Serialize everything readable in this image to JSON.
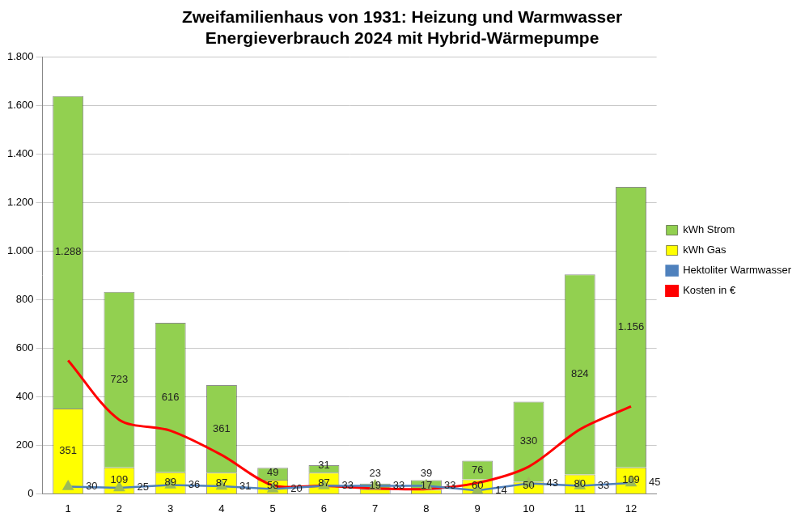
{
  "chart_data": {
    "type": "bar",
    "title": "Zweifamilienhaus von 1931: Heizung und Warmwasser\nEnergieverbrauch 2024 mit Hybrid-Wärmepumpe",
    "categories": [
      "1",
      "2",
      "3",
      "4",
      "5",
      "6",
      "7",
      "8",
      "9",
      "10",
      "11",
      "12"
    ],
    "series": [
      {
        "name": "kWh Gas",
        "type": "bar",
        "color": "#FFFF00",
        "values": [
          351,
          109,
          89,
          87,
          58,
          87,
          19,
          17,
          60,
          50,
          80,
          109
        ],
        "data_labels": true
      },
      {
        "name": "kWh Strom",
        "type": "bar",
        "color": "#92D050",
        "values": [
          1288,
          723,
          616,
          361,
          49,
          31,
          23,
          39,
          76,
          330,
          824,
          1156
        ],
        "value_labels": [
          "1.288",
          "723",
          "616",
          "361",
          "49",
          "31",
          "23",
          "39",
          "76",
          "330",
          "824",
          "1.156"
        ],
        "data_labels": true
      },
      {
        "name": "Hektoliter Warmwasser",
        "type": "line",
        "color": "#4F81BD",
        "marker": "triangle",
        "values": [
          30,
          25,
          36,
          31,
          20,
          33,
          33,
          33,
          14,
          43,
          33,
          45
        ],
        "data_labels": true
      },
      {
        "name": "Kosten in €",
        "type": "line",
        "color": "#FF0000",
        "marker": "none",
        "values": [
          550,
          305,
          260,
          160,
          35,
          33,
          22,
          20,
          45,
          112,
          265,
          360
        ],
        "data_labels": false
      }
    ],
    "ylim": [
      0,
      1800
    ],
    "yticks": [
      0,
      200,
      400,
      600,
      800,
      {
        "value": 1000,
        "label": "1.000"
      },
      {
        "value": 1200,
        "label": "1.200"
      },
      {
        "value": 1400,
        "label": "1.400"
      },
      {
        "value": 1600,
        "label": "1.600"
      },
      {
        "value": 1800,
        "label": "1.800"
      }
    ],
    "stacked": true,
    "grid": true,
    "legend": "right"
  }
}
